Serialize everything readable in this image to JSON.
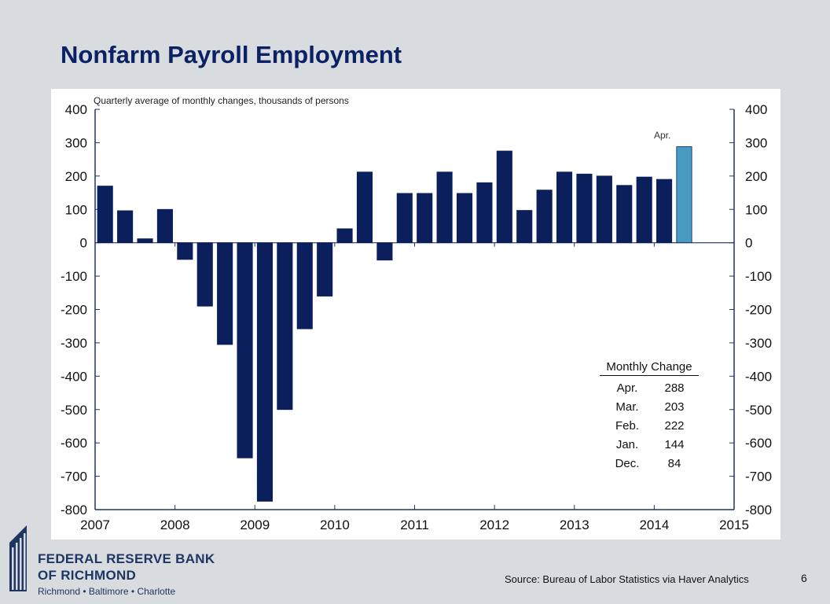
{
  "slide": {
    "title": "Nonfarm Payroll Employment",
    "page_number": "6",
    "source": "Source: Bureau of Labor Statistics via Haver Analytics"
  },
  "logo": {
    "line1": "FEDERAL RESERVE BANK",
    "line2": "OF RICHMOND",
    "line3": "Richmond • Baltimore • Charlotte"
  },
  "inset_table": {
    "title": "Monthly Change",
    "rows": [
      {
        "month": "Apr.",
        "value": "288"
      },
      {
        "month": "Mar.",
        "value": "203"
      },
      {
        "month": "Feb.",
        "value": "222"
      },
      {
        "month": "Jan.",
        "value": "144"
      },
      {
        "month": "Dec.",
        "value": "84"
      }
    ]
  },
  "colors": {
    "bar": "#0a1f5c",
    "highlight_bar": "#4a9bc4",
    "axis": "#1f3563",
    "title": "#0a2165"
  },
  "chart_data": {
    "type": "bar",
    "title": "",
    "subtitle": "Quarterly average of monthly changes, thousands of persons",
    "callout": "Apr.",
    "ylim": [
      -800,
      400
    ],
    "yticks": [
      400,
      300,
      200,
      100,
      0,
      -100,
      -200,
      -300,
      -400,
      -500,
      -600,
      -700,
      -800
    ],
    "xlim": [
      2007,
      2015
    ],
    "xticks": [
      "2007",
      "2008",
      "2009",
      "2010",
      "2011",
      "2012",
      "2013",
      "2014",
      "2015"
    ],
    "grid": false,
    "dual_y_axis": true,
    "categories": [
      "2007Q1",
      "2007Q2",
      "2007Q3",
      "2007Q4",
      "2008Q1",
      "2008Q2",
      "2008Q3",
      "2008Q4",
      "2009Q1",
      "2009Q2",
      "2009Q3",
      "2009Q4",
      "2010Q1",
      "2010Q2",
      "2010Q3",
      "2010Q4",
      "2011Q1",
      "2011Q2",
      "2011Q3",
      "2011Q4",
      "2012Q1",
      "2012Q2",
      "2012Q3",
      "2012Q4",
      "2013Q1",
      "2013Q2",
      "2013Q3",
      "2013Q4",
      "2014Q1",
      "2014Q2"
    ],
    "values": [
      170,
      96,
      12,
      100,
      -50,
      -190,
      -305,
      -645,
      -775,
      -500,
      -258,
      -160,
      42,
      212,
      -52,
      148,
      148,
      212,
      148,
      180,
      275,
      97,
      158,
      212,
      206,
      200,
      172,
      197,
      190,
      288
    ],
    "highlight_index": 29
  }
}
